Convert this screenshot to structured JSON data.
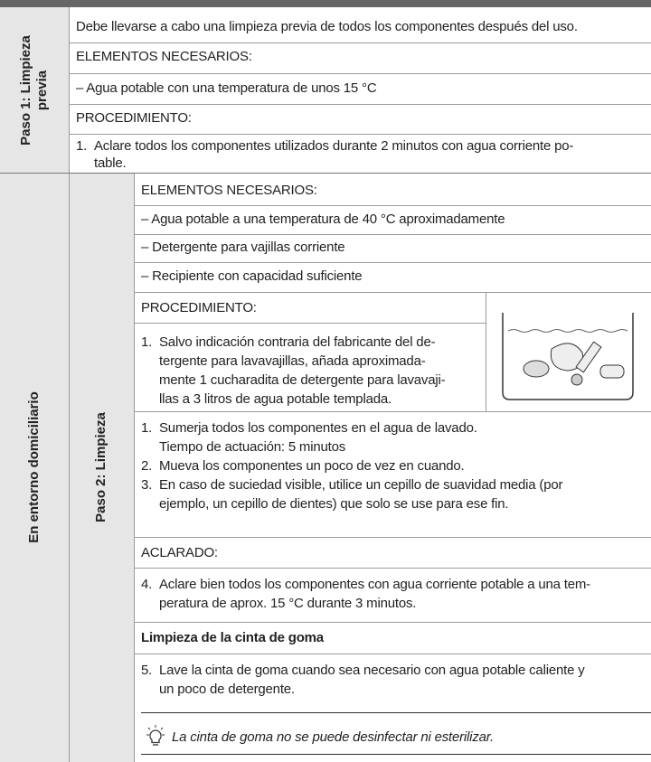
{
  "section_1": {
    "label": [
      "Paso 1: Limpieza",
      "previa"
    ],
    "intro": "Debe llevarse a cabo una limpieza previa de todos los componentes después del uso.",
    "needed_heading": "ELEMENTOS NECESARIOS:",
    "needed": [
      "– Agua potable con una temperatura de unos 15 °C"
    ],
    "procedure_heading": "PROCEDIMIENTO:",
    "steps": [
      {
        "number": "1.",
        "lines": [
          "Aclare todos los componentes utilizados durante 2 minutos con agua corriente po-",
          "table."
        ]
      }
    ]
  },
  "section_2": {
    "label": "En entorno domiciliario",
    "sub_label": "Paso 2: Limpieza",
    "needed_heading": "ELEMENTOS NECESARIOS:",
    "needed": [
      "– Agua potable a una temperatura de 40 °C aproximadamente",
      "– Detergente para vajillas corriente",
      "– Recipiente con capacidad suficiente"
    ],
    "procedure_heading": "PROCEDIMIENTO:",
    "procedure_steps": [
      {
        "number": "1.",
        "lines": [
          "Salvo indicación contraria del fabricante del de-",
          "tergente para lavavajillas, añada aproximada-",
          "mente 1 cucharadita de detergente para lavavaji-",
          "llas a 3 litros de agua potable templada."
        ]
      }
    ],
    "wash_steps": [
      {
        "number": "1.",
        "lines": [
          "Sumerja todos los componentes en el agua de lavado.",
          "Tiempo de actuación: 5 minutos"
        ]
      },
      {
        "number": "2.",
        "lines": [
          "Mueva los componentes un poco de vez en cuando."
        ]
      },
      {
        "number": "3.",
        "lines": [
          "En caso de suciedad visible, utilice un cepillo de suavidad media (por",
          "ejemplo, un cepillo de dientes) que solo se use para ese fin."
        ]
      }
    ],
    "rinse_heading": "ACLARADO:",
    "rinse_steps": [
      {
        "number": "4.",
        "lines": [
          "Aclare bien todos los componentes con agua corriente potable a una tem-",
          "peratura de aprox. 15 °C durante 3 minutos."
        ]
      }
    ],
    "strap_heading": "Limpieza de la cinta de goma",
    "strap_steps": [
      {
        "number": "5.",
        "lines": [
          "Lave la cinta de goma cuando sea necesario con agua potable caliente y",
          "un poco de detergente."
        ]
      }
    ],
    "tip": "La cinta de goma no se puede desinfectar ni esterilizar."
  }
}
